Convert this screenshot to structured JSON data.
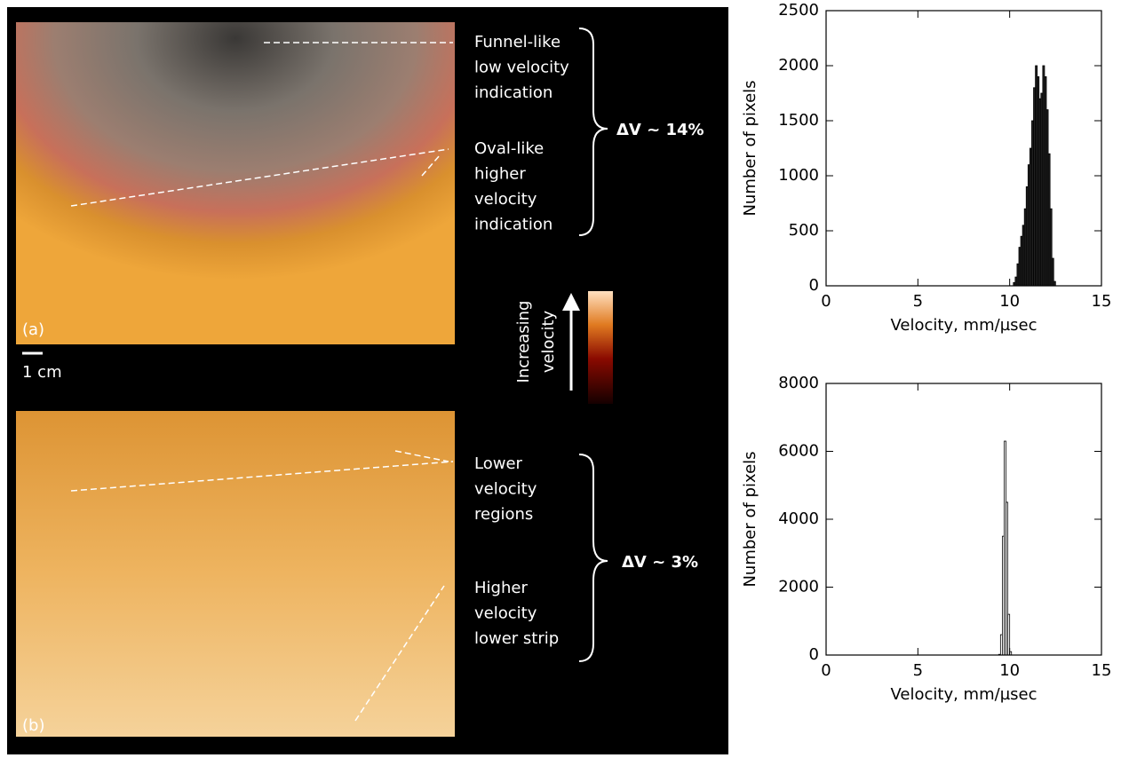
{
  "panels": {
    "a": {
      "label": "(a)",
      "annotations": [
        [
          "Funnel-like",
          "low velocity",
          "indication"
        ],
        [
          "Oval-like",
          "higher",
          "velocity",
          "indication"
        ]
      ],
      "delta": "ΔV ~ 14%"
    },
    "b": {
      "label": "(b)",
      "annotations": [
        [
          "Lower",
          "velocity",
          "regions"
        ],
        [
          "Higher",
          "velocity",
          "lower strip"
        ]
      ],
      "delta": "ΔV ~ 3%"
    }
  },
  "scale_bar": "1 cm",
  "colorbar_label": [
    "Increasing",
    "velocity"
  ],
  "chart_data": [
    {
      "type": "histogram",
      "xlabel": "Velocity, mm/µsec",
      "ylabel": "Number of pixels",
      "color": "#222222",
      "edgecolor": "#000000",
      "bins": [
        10.2,
        10.3,
        10.4,
        10.5,
        10.6,
        10.7,
        10.8,
        10.9,
        11.0,
        11.1,
        11.2,
        11.3,
        11.4,
        11.5,
        11.6,
        11.7,
        11.8,
        11.9,
        12.0,
        12.1,
        12.2,
        12.3,
        12.4,
        12.5
      ],
      "values": [
        30,
        80,
        200,
        350,
        450,
        550,
        700,
        900,
        1100,
        1250,
        1500,
        1800,
        2000,
        1900,
        1700,
        1750,
        2000,
        1900,
        1600,
        1200,
        700,
        250,
        40
      ],
      "xlim": [
        0,
        15
      ],
      "xticks": [
        0,
        5,
        10,
        15
      ],
      "ylim": [
        0,
        2500
      ],
      "yticks": [
        0,
        500,
        1000,
        1500,
        2000,
        2500
      ]
    },
    {
      "type": "histogram",
      "xlabel": "Velocity, mm/µsec",
      "ylabel": "Number of pixels",
      "color": "#ffffff",
      "edgecolor": "#000000",
      "bins": [
        9.4,
        9.5,
        9.6,
        9.7,
        9.8,
        9.9,
        10.0,
        10.1
      ],
      "values": [
        20,
        600,
        3500,
        6300,
        4500,
        1200,
        100
      ],
      "xlim": [
        0,
        15
      ],
      "xticks": [
        0,
        5,
        10,
        15
      ],
      "ylim": [
        0,
        8000
      ],
      "yticks": [
        0,
        2000,
        4000,
        6000,
        8000
      ]
    }
  ]
}
